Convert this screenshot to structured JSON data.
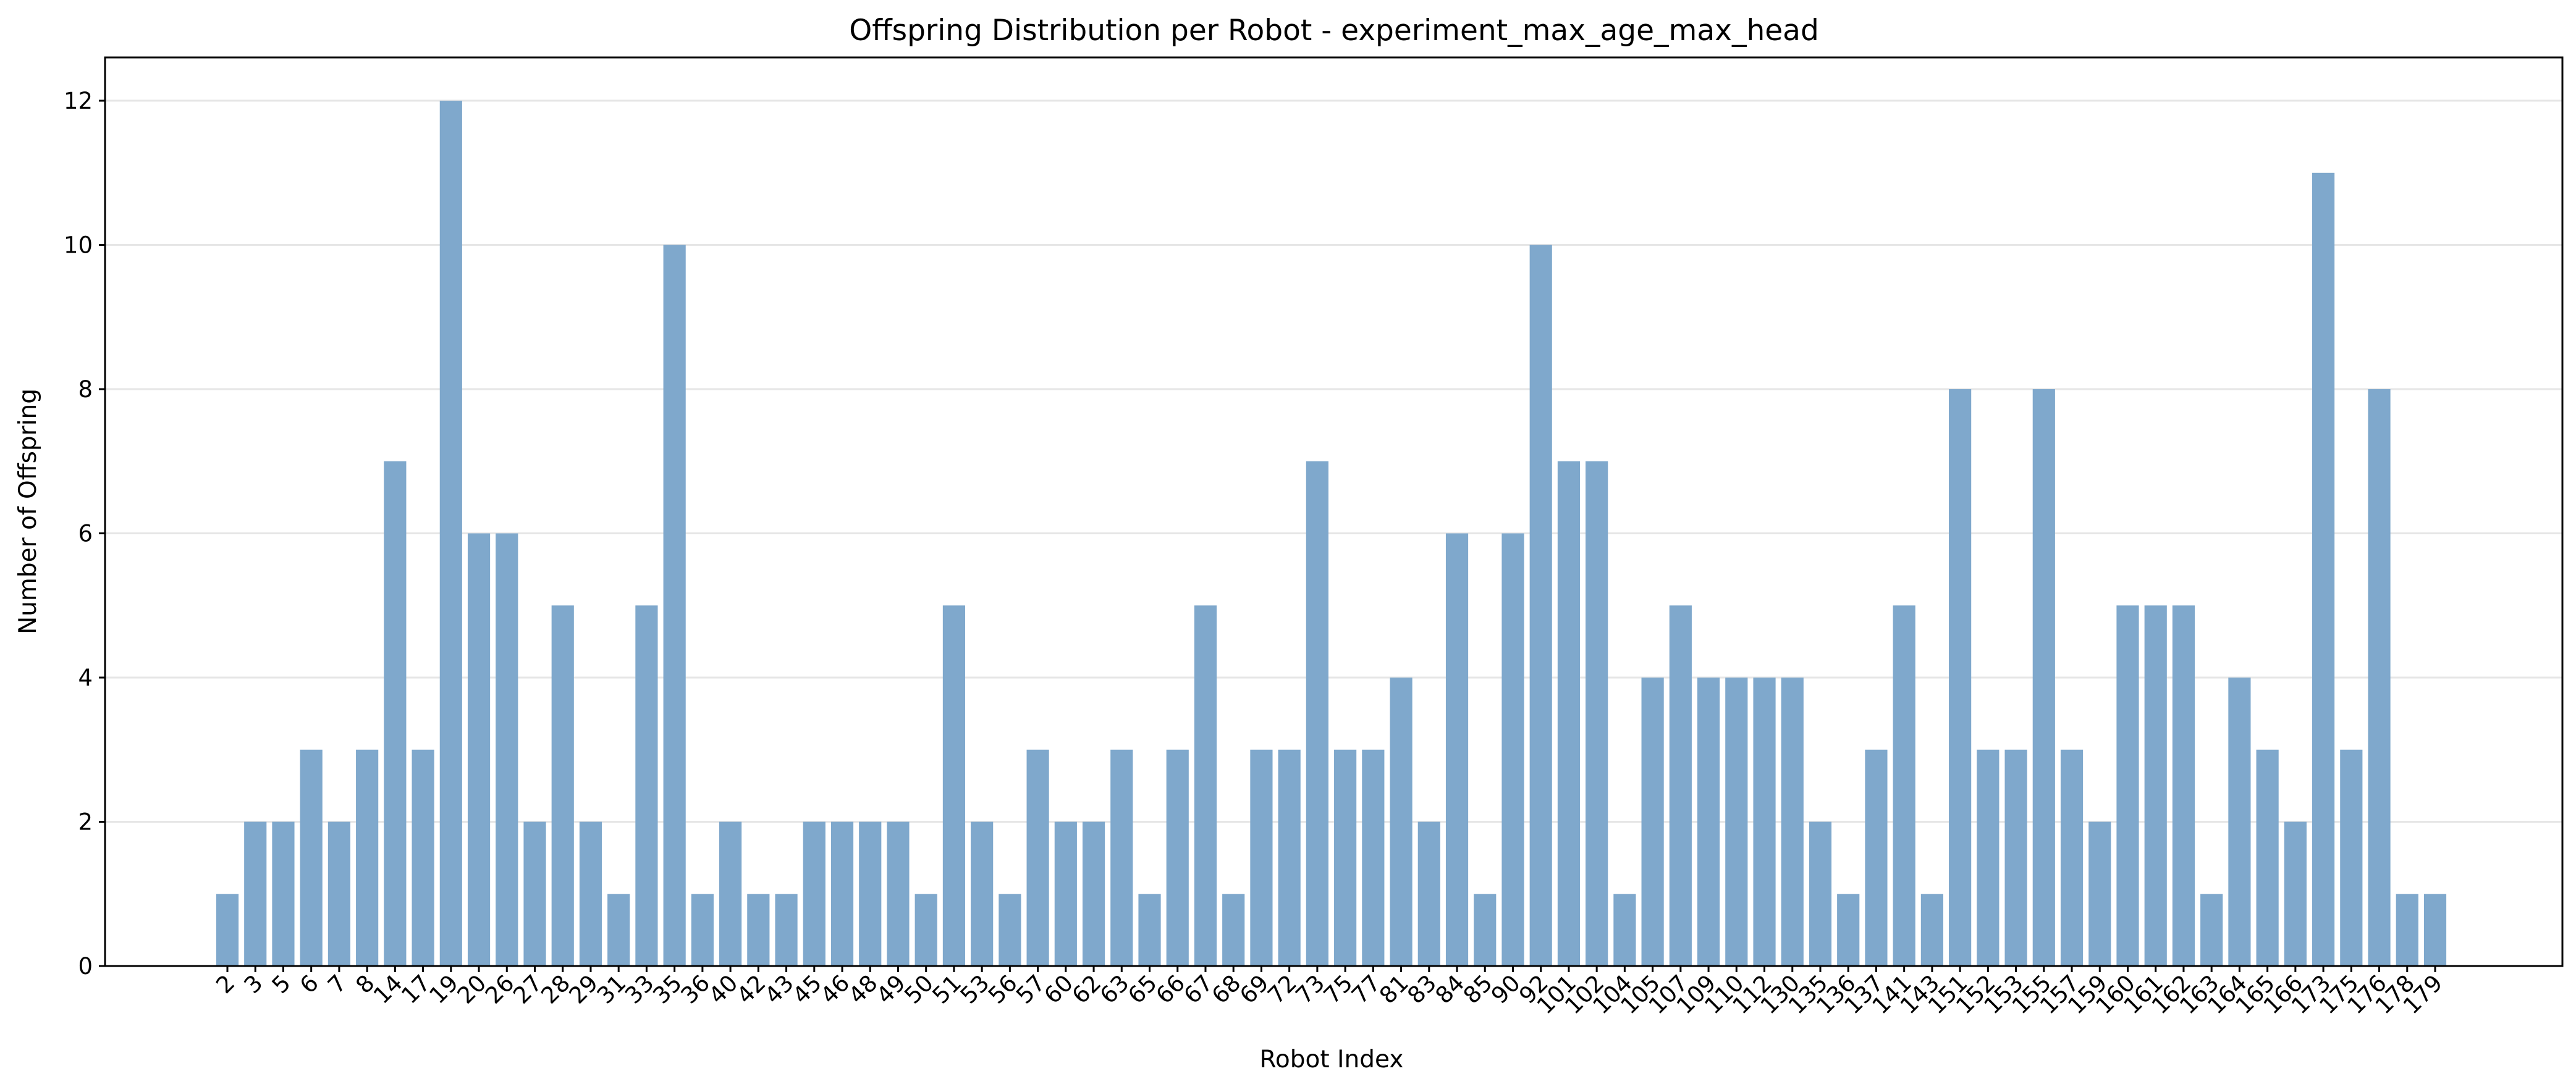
{
  "chart_data": {
    "type": "bar",
    "title": "Offspring Distribution per Robot - experiment_max_age_max_head",
    "xlabel": "Robot Index",
    "ylabel": "Number of Offspring",
    "ylim": [
      0,
      12.6
    ],
    "yticks": [
      "0",
      "2",
      "4",
      "6",
      "8",
      "10",
      "12"
    ],
    "grid": "horizontal",
    "bar_color": "#7fa8cc",
    "categories": [
      "2",
      "3",
      "5",
      "6",
      "7",
      "8",
      "14",
      "17",
      "19",
      "20",
      "26",
      "27",
      "28",
      "29",
      "31",
      "33",
      "35",
      "36",
      "40",
      "42",
      "43",
      "45",
      "46",
      "48",
      "49",
      "50",
      "51",
      "53",
      "56",
      "57",
      "60",
      "62",
      "63",
      "65",
      "66",
      "67",
      "68",
      "69",
      "72",
      "73",
      "75",
      "77",
      "81",
      "83",
      "84",
      "85",
      "90",
      "92",
      "101",
      "102",
      "104",
      "105",
      "107",
      "109",
      "110",
      "112",
      "130",
      "135",
      "136",
      "137",
      "141",
      "143",
      "151",
      "152",
      "153",
      "155",
      "157",
      "159",
      "160",
      "161",
      "162",
      "163",
      "164",
      "165",
      "166",
      "173",
      "175",
      "176",
      "178",
      "179"
    ],
    "values": [
      1,
      2,
      2,
      3,
      2,
      3,
      7,
      3,
      12,
      6,
      6,
      2,
      5,
      2,
      1,
      5,
      10,
      1,
      2,
      1,
      1,
      2,
      2,
      2,
      2,
      1,
      5,
      2,
      1,
      3,
      2,
      2,
      3,
      1,
      3,
      5,
      1,
      3,
      3,
      7,
      3,
      3,
      4,
      2,
      6,
      1,
      6,
      10,
      7,
      7,
      1,
      4,
      5,
      4,
      4,
      4,
      4,
      2,
      1,
      3,
      5,
      1,
      8,
      3,
      3,
      8,
      3,
      2,
      5,
      5,
      5,
      1,
      4,
      3,
      2,
      11,
      3,
      8,
      1,
      1
    ]
  }
}
